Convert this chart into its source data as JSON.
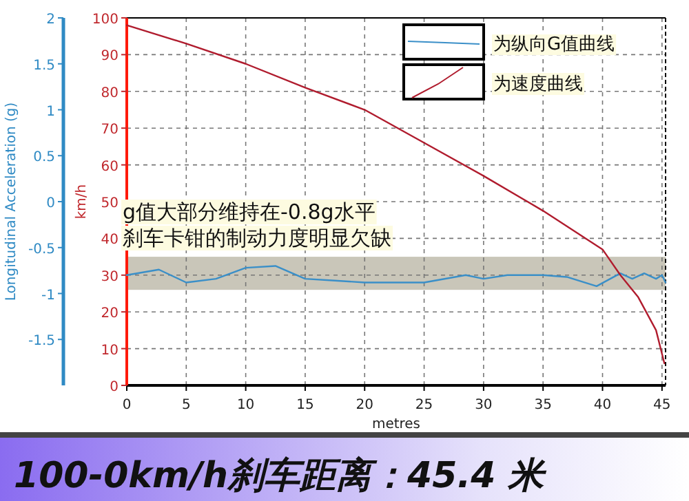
{
  "chart_data": {
    "type": "line",
    "title": "100-0km/h刹车距离：45.4 米",
    "xlabel": "metres",
    "ylabel": "km/h",
    "y2label": "Longitudinal Acceleration (g)",
    "annotations": [
      "g值大部分维持在-0.8g水平",
      "刹车卡钳的制动力度明显欠缺"
    ],
    "xlim": [
      0,
      45.3
    ],
    "xticks": [
      0,
      5,
      10,
      15,
      20,
      25,
      30,
      35,
      40,
      45
    ],
    "ylim": [
      0,
      100
    ],
    "yticks": [
      0,
      10,
      20,
      30,
      40,
      50,
      60,
      70,
      80,
      90,
      100
    ],
    "y2lim": [
      -2,
      2
    ],
    "y2ticks": [
      -1.5,
      -1,
      -0.5,
      0,
      0.5,
      1,
      1.5,
      2
    ],
    "grid": true,
    "legend": "top right",
    "line_style": "solid",
    "marker": "none",
    "bands": [
      {
        "axis": "y2",
        "from": -0.96,
        "to": -0.6,
        "color": "#c9c6b9"
      }
    ],
    "series": [
      {
        "name": "为纵向G值曲线",
        "color": "#3a8fc8",
        "axis": "y2",
        "x": [
          0,
          2.7,
          5,
          7.5,
          10,
          12.5,
          15,
          17.5,
          20,
          25,
          28.5,
          30,
          32,
          35,
          37,
          39.5,
          41.5,
          42.5,
          43.5,
          44.5,
          45,
          45.3
        ],
        "values": [
          -0.8,
          -0.74,
          -0.88,
          -0.84,
          -0.72,
          -0.7,
          -0.84,
          -0.86,
          -0.88,
          -0.88,
          -0.8,
          -0.84,
          -0.8,
          -0.8,
          -0.82,
          -0.92,
          -0.78,
          -0.84,
          -0.78,
          -0.84,
          -0.8,
          -0.88
        ]
      },
      {
        "name": "为速度曲线",
        "color": "#b01c2e",
        "x": [
          0,
          5,
          10,
          15,
          20,
          25,
          30,
          35,
          40,
          41.5,
          43,
          44.5,
          45.2
        ],
        "values": [
          98,
          93,
          87.5,
          81,
          75,
          66,
          57,
          47.5,
          37,
          30,
          24,
          15,
          6
        ]
      }
    ]
  }
}
